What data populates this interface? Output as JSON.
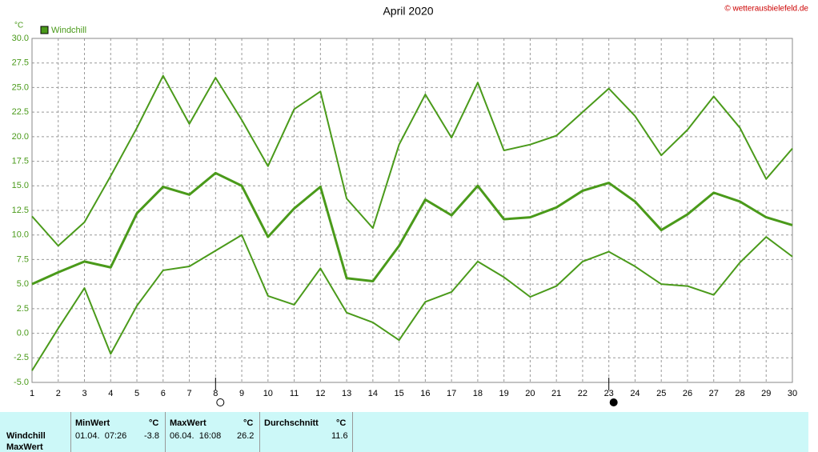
{
  "chart_data": {
    "type": "line",
    "title": "April 2020",
    "unit": "°C",
    "legend": "Windchill",
    "copyright": "© wetterausbielefeld.de",
    "x": [
      1,
      2,
      3,
      4,
      5,
      6,
      7,
      8,
      9,
      10,
      11,
      12,
      13,
      14,
      15,
      16,
      17,
      18,
      19,
      20,
      21,
      22,
      23,
      24,
      25,
      26,
      27,
      28,
      29,
      30
    ],
    "xlim": [
      1,
      30
    ],
    "ylim": [
      -5,
      30
    ],
    "yticks": [
      {
        "value": -5,
        "label": "-5.0"
      },
      -2.5,
      {
        "value": 0,
        "label": "0.0"
      },
      2.5,
      {
        "value": 5,
        "label": "5.0"
      },
      7.5,
      {
        "value": 10,
        "label": "10.0"
      },
      12.5,
      {
        "value": 15,
        "label": "15.0"
      },
      17.5,
      {
        "value": 20,
        "label": "20.0"
      },
      22.5,
      {
        "value": 25,
        "label": "25.0"
      },
      27.5,
      {
        "value": 30,
        "label": "30.0"
      }
    ],
    "grid": true,
    "full_moon_day": 8,
    "new_moon_day": 23,
    "series": [
      {
        "color": "#4a9a1a",
        "width": 2,
        "values": [
          11.9,
          8.9,
          11.3,
          16.0,
          20.9,
          26.2,
          21.3,
          26.0,
          21.7,
          17.0,
          22.8,
          24.6,
          13.7,
          10.7,
          19.2,
          24.3,
          19.9,
          25.5,
          18.6,
          19.2,
          20.1,
          22.5,
          24.9,
          22.1,
          18.1,
          20.7,
          24.1,
          20.9,
          15.7,
          18.8
        ]
      },
      {
        "color": "#4a9a1a",
        "width": 3,
        "values": [
          5.0,
          6.2,
          7.3,
          6.7,
          12.2,
          14.9,
          14.1,
          16.3,
          15.0,
          9.8,
          12.7,
          14.9,
          5.6,
          5.3,
          8.9,
          13.6,
          12.0,
          15.0,
          11.6,
          11.8,
          12.8,
          14.5,
          15.3,
          13.4,
          10.5,
          12.1,
          14.3,
          13.4,
          11.8,
          11.0
        ]
      },
      {
        "color": "#4a9a1a",
        "width": 2,
        "values": [
          -3.8,
          0.5,
          4.6,
          -2.1,
          2.8,
          6.4,
          6.8,
          8.4,
          10.0,
          3.8,
          2.9,
          6.6,
          2.1,
          1.1,
          -0.7,
          3.2,
          4.2,
          7.3,
          5.7,
          3.7,
          4.8,
          7.3,
          8.3,
          6.8,
          5.0,
          4.8,
          3.9,
          7.2,
          9.8,
          7.8
        ]
      }
    ]
  },
  "stats": {
    "row_labels": [
      "Windchill",
      "MaxWert"
    ],
    "min": {
      "header": "MinWert",
      "unit": "°C",
      "time": "01.04.  07:26",
      "value": -3.8
    },
    "max": {
      "header": "MaxWert",
      "unit": "°C",
      "time": "06.04.  16:08",
      "value": 26.2
    },
    "avg": {
      "header": "Durchschnitt",
      "unit": "°C",
      "value": 11.6
    }
  }
}
